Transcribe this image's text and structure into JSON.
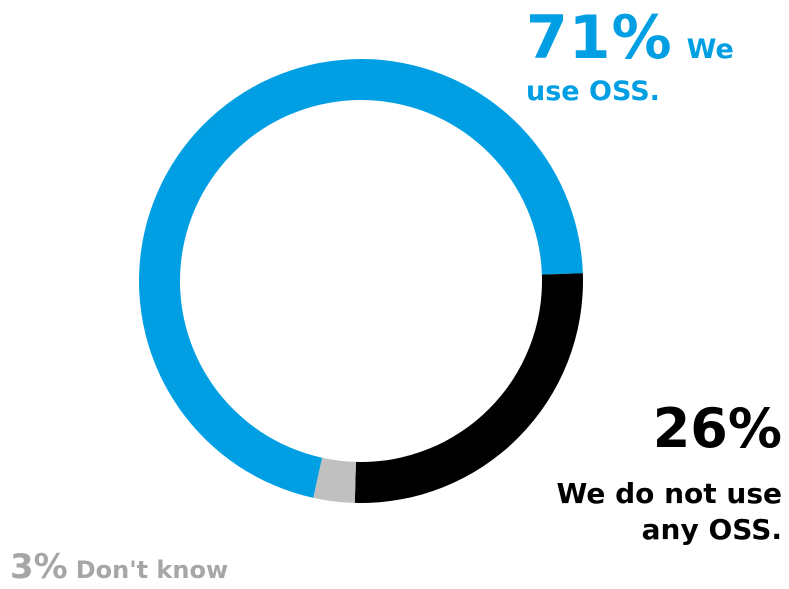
{
  "chart_data": {
    "type": "pie",
    "categories": [
      "We use OSS.",
      "We do not use any OSS.",
      "Don't know"
    ],
    "values": [
      71,
      26,
      3
    ],
    "colors": [
      "#009fe3",
      "#000000",
      "#c0c0c0"
    ],
    "labels": [
      {
        "pct": "71%",
        "text_line1": "We",
        "text_line2": "use OSS."
      },
      {
        "pct": "26%",
        "text_line1": "We do not use",
        "text_line2": "any OSS."
      },
      {
        "pct": "3%",
        "text": "Don't know"
      }
    ]
  }
}
